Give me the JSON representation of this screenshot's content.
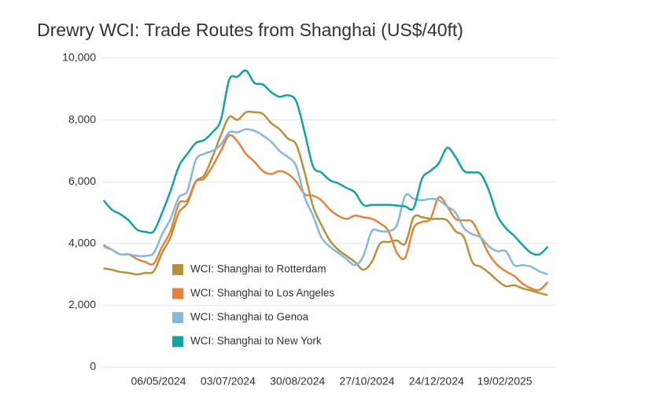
{
  "chart_data": {
    "type": "line",
    "title": "Drewry WCI: Trade Routes from Shanghai (US$/40ft)",
    "x": [
      "21/03/2024",
      "28/03/2024",
      "04/04/2024",
      "11/04/2024",
      "18/04/2024",
      "25/04/2024",
      "02/05/2024",
      "09/05/2024",
      "16/05/2024",
      "23/05/2024",
      "30/05/2024",
      "06/06/2024",
      "13/06/2024",
      "20/06/2024",
      "27/06/2024",
      "04/07/2024",
      "11/07/2024",
      "18/07/2024",
      "25/07/2024",
      "01/08/2024",
      "08/08/2024",
      "15/08/2024",
      "22/08/2024",
      "29/08/2024",
      "05/09/2024",
      "12/09/2024",
      "19/09/2024",
      "26/09/2024",
      "03/10/2024",
      "10/10/2024",
      "17/10/2024",
      "24/10/2024",
      "31/10/2024",
      "07/11/2024",
      "14/11/2024",
      "21/11/2024",
      "28/11/2024",
      "05/12/2024",
      "12/12/2024",
      "19/12/2024",
      "26/12/2024",
      "02/01/2025",
      "09/01/2025",
      "16/01/2025",
      "23/01/2025",
      "30/01/2025",
      "06/02/2025",
      "13/02/2025",
      "20/02/2025",
      "27/02/2025",
      "06/03/2025",
      "13/03/2025",
      "20/03/2025",
      "27/03/2025"
    ],
    "series": [
      {
        "name": "WCI: Shanghai to Rotterdam",
        "color": "#b5913a",
        "values": [
          3200,
          3150,
          3080,
          3050,
          3000,
          3050,
          3100,
          3700,
          4200,
          5000,
          5300,
          6000,
          6200,
          6800,
          7500,
          8100,
          8000,
          8250,
          8250,
          8200,
          7900,
          7700,
          7400,
          7200,
          6300,
          5200,
          4600,
          4100,
          3800,
          3600,
          3400,
          3150,
          3400,
          4000,
          4050,
          4100,
          4000,
          4850,
          4850,
          4800,
          4800,
          4750,
          4400,
          4200,
          3400,
          3250,
          3050,
          2800,
          2620,
          2650,
          2550,
          2480,
          2400,
          2330
        ]
      },
      {
        "name": "WCI: Shanghai to Los Angeles",
        "color": "#e8823b",
        "values": [
          3950,
          3800,
          3650,
          3650,
          3500,
          3400,
          3350,
          3900,
          4400,
          5300,
          5400,
          6000,
          6100,
          6500,
          7000,
          7500,
          7300,
          6900,
          6650,
          6350,
          6250,
          6350,
          6250,
          6000,
          5600,
          5550,
          5400,
          5100,
          4900,
          4800,
          4900,
          4850,
          4800,
          4650,
          4400,
          3700,
          3550,
          4500,
          4700,
          4800,
          5500,
          5200,
          4800,
          4750,
          4700,
          4200,
          3650,
          3300,
          3100,
          2950,
          2700,
          2550,
          2500,
          2750
        ]
      },
      {
        "name": "WCI: Shanghai to Genoa",
        "color": "#86b7dc",
        "values": [
          3900,
          3800,
          3650,
          3650,
          3600,
          3600,
          3700,
          4300,
          4800,
          5500,
          5700,
          6700,
          6900,
          7000,
          7200,
          7600,
          7600,
          7700,
          7650,
          7500,
          7300,
          7000,
          6800,
          6500,
          5500,
          4900,
          4200,
          3900,
          3700,
          3500,
          3300,
          3600,
          4400,
          4400,
          4400,
          4600,
          5550,
          5450,
          5400,
          5450,
          5400,
          5200,
          5000,
          4500,
          4300,
          4200,
          3900,
          3750,
          3750,
          3300,
          3300,
          3250,
          3100,
          3000
        ]
      },
      {
        "name": "WCI: Shanghai to New York",
        "color": "#10a3a0",
        "values": [
          5400,
          5100,
          4950,
          4750,
          4450,
          4380,
          4400,
          5000,
          5700,
          6500,
          6900,
          7250,
          7350,
          7600,
          8000,
          9300,
          9400,
          9600,
          9200,
          9150,
          8900,
          8750,
          8800,
          8600,
          7600,
          6500,
          6300,
          6050,
          5950,
          5800,
          5650,
          5250,
          5250,
          5250,
          5250,
          5230,
          5200,
          5150,
          6100,
          6350,
          6600,
          7100,
          6800,
          6350,
          6300,
          6250,
          5700,
          4900,
          4500,
          4250,
          3950,
          3700,
          3650,
          3900
        ]
      }
    ],
    "xlim": [
      "20/03/2024",
      "03/04/2025"
    ],
    "xticks": [
      "06/05/2024",
      "03/07/2024",
      "30/08/2024",
      "27/10/2024",
      "24/12/2024",
      "19/02/2025"
    ],
    "ylim": [
      0,
      10000
    ],
    "yticks": [
      0,
      {
        "value": 2000,
        "label": "2,000"
      },
      {
        "value": 4000,
        "label": "4,000"
      },
      {
        "value": 6000,
        "label": "6,000"
      },
      {
        "value": 8000,
        "label": "8,000"
      },
      {
        "value": 10000,
        "label": "10,000"
      }
    ],
    "grid": true
  }
}
